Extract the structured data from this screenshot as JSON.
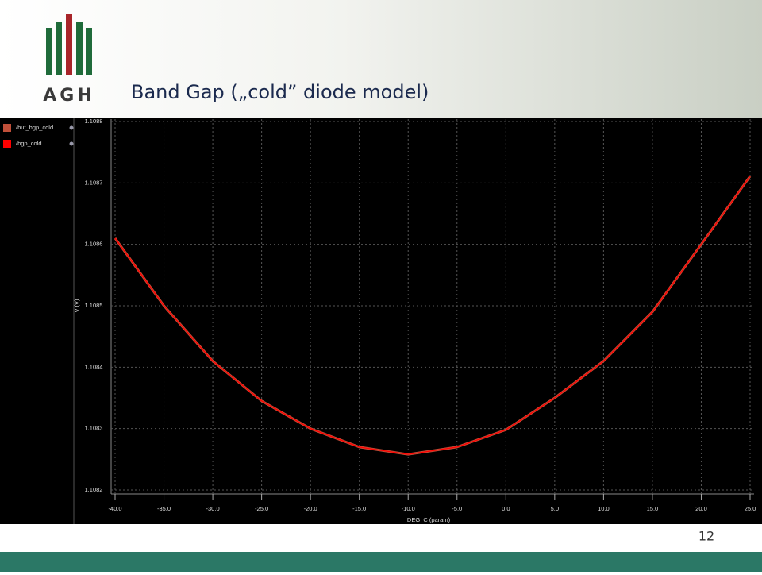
{
  "slide": {
    "logo_text": "AGH",
    "title": "Band Gap („cold” diode model)",
    "page_number": "12"
  },
  "chart_data": {
    "type": "line",
    "x_label": "DEG_C (param)",
    "y_label": "V (V)",
    "x": [
      -40,
      -35,
      -30,
      -25,
      -20,
      -15,
      -10,
      -5,
      0,
      5,
      10,
      15,
      20,
      25
    ],
    "series": [
      {
        "name": "/buf_bgp_cold",
        "color": "#c0503a",
        "values": [
          1.10861,
          1.1085,
          1.10841,
          1.108345,
          1.1083,
          1.10827,
          1.108258,
          1.10827,
          1.108298,
          1.10835,
          1.10841,
          1.10849,
          1.1086,
          1.108711
        ]
      },
      {
        "name": "/bgp_cold",
        "color": "#ff0000",
        "values": [
          1.10861,
          1.1085,
          1.10841,
          1.108345,
          1.1083,
          1.10827,
          1.108258,
          1.10827,
          1.108298,
          1.10835,
          1.10841,
          1.10849,
          1.1086,
          1.108711
        ]
      }
    ],
    "xlim": [
      -40,
      25
    ],
    "ylim": [
      1.1082,
      1.1088
    ],
    "xticks": [
      {
        "value": -40,
        "label": "-40.0"
      },
      {
        "value": -35,
        "label": "-35.0"
      },
      {
        "value": -30,
        "label": "-30.0"
      },
      {
        "value": -25,
        "label": "-25.0"
      },
      {
        "value": -20,
        "label": "-20.0"
      },
      {
        "value": -15,
        "label": "-15.0"
      },
      {
        "value": -10,
        "label": "-10.0"
      },
      {
        "value": -5,
        "label": "-5.0"
      },
      {
        "value": 0,
        "label": "0.0"
      },
      {
        "value": 5,
        "label": "5.0"
      },
      {
        "value": 10,
        "label": "10.0"
      },
      {
        "value": 15,
        "label": "15.0"
      },
      {
        "value": 20,
        "label": "20.0"
      },
      {
        "value": 25,
        "label": "25.0"
      }
    ],
    "yticks": [
      1.1082,
      1.1083,
      1.1084,
      1.1085,
      1.1086,
      1.1087,
      1.1088
    ],
    "grid": true
  }
}
